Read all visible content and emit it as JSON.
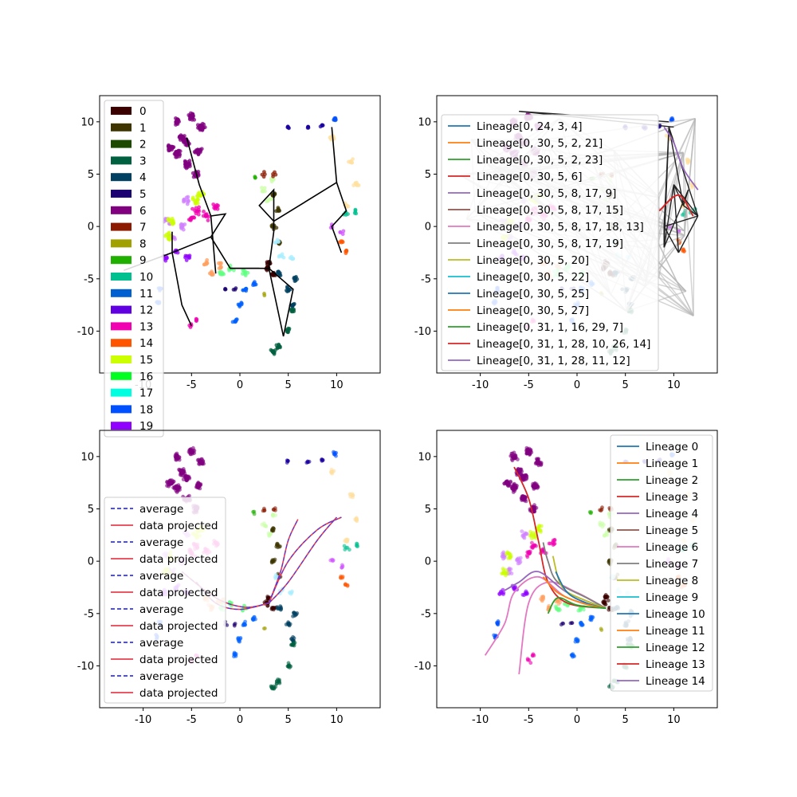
{
  "chart_data": [
    {
      "type": "scatter",
      "panel": "top-left",
      "xlim": [
        -14.5,
        14.5
      ],
      "ylim": [
        -14,
        12.5
      ],
      "xticks": [
        "-10",
        "-5",
        "0",
        "5",
        "10"
      ],
      "xtick_values": [
        -10,
        -5,
        0,
        5,
        10
      ],
      "yticks": [
        "-10",
        "-5",
        "0",
        "5",
        "10"
      ],
      "ytick_values": [
        -10,
        -5,
        0,
        5,
        10
      ],
      "legend_position": "upper-left",
      "legend": [
        {
          "label": "0",
          "color": "#3b0000"
        },
        {
          "label": "1",
          "color": "#3e3500"
        },
        {
          "label": "2",
          "color": "#1d4a00"
        },
        {
          "label": "3",
          "color": "#006040"
        },
        {
          "label": "4",
          "color": "#004060"
        },
        {
          "label": "5",
          "color": "#1a0070"
        },
        {
          "label": "6",
          "color": "#800080"
        },
        {
          "label": "7",
          "color": "#8b1a00"
        },
        {
          "label": "8",
          "color": "#a0a000"
        },
        {
          "label": "9",
          "color": "#20b000"
        },
        {
          "label": "10",
          "color": "#00c090"
        },
        {
          "label": "11",
          "color": "#0060d0"
        },
        {
          "label": "12",
          "color": "#6000e0"
        },
        {
          "label": "13",
          "color": "#f000b0"
        },
        {
          "label": "14",
          "color": "#ff5500"
        },
        {
          "label": "15",
          "color": "#ccff00"
        },
        {
          "label": "16",
          "color": "#00ff20"
        },
        {
          "label": "17",
          "color": "#00ffe0"
        },
        {
          "label": "18",
          "color": "#0050ff"
        },
        {
          "label": "19",
          "color": "#9000ff"
        }
      ],
      "tree_edges": [
        [
          [
            -5.5,
            8.5
          ],
          [
            -4.2,
            4.0
          ],
          [
            -3.0,
            1.0
          ],
          [
            -2.5,
            -4.5
          ]
        ],
        [
          [
            -3.0,
            1.0
          ],
          [
            -1.5,
            1.2
          ],
          [
            -3.0,
            -1.0
          ]
        ],
        [
          [
            -3.0,
            -1.0
          ],
          [
            -7.0,
            -2.5
          ],
          [
            -12.0,
            -4.2
          ]
        ],
        [
          [
            -7.0,
            -2.5
          ],
          [
            -7.0,
            -0.5
          ]
        ],
        [
          [
            -7.0,
            -2.5
          ],
          [
            -6.0,
            -7.5
          ],
          [
            -5.0,
            -9.5
          ]
        ],
        [
          [
            -3.0,
            -1.0
          ],
          [
            -1.0,
            -4.0
          ],
          [
            3.0,
            -4.0
          ],
          [
            4.5,
            -10.5
          ],
          [
            5.5,
            -6.0
          ],
          [
            3.0,
            -4.0
          ]
        ],
        [
          [
            -1.0,
            -4.0
          ],
          [
            2.0,
            -4.0
          ]
        ],
        [
          [
            3.0,
            -4.0
          ],
          [
            3.5,
            -0.5
          ],
          [
            3.5,
            0.5
          ],
          [
            2.0,
            2.0
          ],
          [
            3.5,
            3.5
          ],
          [
            3.5,
            0.5
          ]
        ],
        [
          [
            3.5,
            0.5
          ],
          [
            10.0,
            4.2
          ],
          [
            11.0,
            1.5
          ],
          [
            9.5,
            0.0
          ],
          [
            10.5,
            -2.5
          ]
        ],
        [
          [
            10.0,
            4.2
          ],
          [
            9.5,
            9.5
          ]
        ]
      ]
    },
    {
      "type": "line",
      "panel": "top-right",
      "xlim": [
        -14.5,
        14.5
      ],
      "ylim": [
        -14,
        12.5
      ],
      "xticks": [
        "-10",
        "-5",
        "0",
        "5",
        "10"
      ],
      "xtick_values": [
        -10,
        -5,
        0,
        5,
        10
      ],
      "yticks": [
        "-10",
        "-5",
        "0",
        "5",
        "10"
      ],
      "ytick_values": [
        -10,
        -5,
        0,
        5,
        10
      ],
      "legend_position": "upper-left",
      "legend": [
        {
          "label": "Lineage[0, 24, 3, 4]",
          "color": "#1f77b4"
        },
        {
          "label": "Lineage[0, 30, 5, 2, 21]",
          "color": "#ff7f0e"
        },
        {
          "label": "Lineage[0, 30, 5, 2, 23]",
          "color": "#2ca02c"
        },
        {
          "label": "Lineage[0, 30, 5, 6]",
          "color": "#d62728"
        },
        {
          "label": "Lineage[0, 30, 5, 8, 17, 9]",
          "color": "#9467bd"
        },
        {
          "label": "Lineage[0, 30, 5, 8, 17, 15]",
          "color": "#8c564b"
        },
        {
          "label": "Lineage[0, 30, 5, 8, 17, 18, 13]",
          "color": "#e377c2"
        },
        {
          "label": "Lineage[0, 30, 5, 8, 17, 19]",
          "color": "#7f7f7f"
        },
        {
          "label": "Lineage[0, 30, 5, 20]",
          "color": "#bcbd22"
        },
        {
          "label": "Lineage[0, 30, 5, 22]",
          "color": "#17becf"
        },
        {
          "label": "Lineage[0, 30, 5, 25]",
          "color": "#1f77b4"
        },
        {
          "label": "Lineage[0, 30, 5, 27]",
          "color": "#ff7f0e"
        },
        {
          "label": "Lineage[0, 31, 1, 16, 29, 7]",
          "color": "#2ca02c"
        },
        {
          "label": "Lineage[0, 31, 1, 28, 10, 26, 14]",
          "color": "#d62728"
        },
        {
          "label": "Lineage[0, 31, 1, 28, 11, 12]",
          "color": "#9467bd"
        }
      ]
    },
    {
      "type": "line",
      "panel": "bottom-left",
      "xlim": [
        -14.5,
        14.5
      ],
      "ylim": [
        -14,
        12.5
      ],
      "xticks": [
        "-10",
        "-5",
        "0",
        "5",
        "10"
      ],
      "xtick_values": [
        -10,
        -5,
        0,
        5,
        10
      ],
      "yticks": [
        "-10",
        "-5",
        "0",
        "5",
        "10"
      ],
      "ytick_values": [
        -10,
        -5,
        0,
        5,
        10
      ],
      "legend_position": "lower-left",
      "legend": [
        {
          "label": "average",
          "color": "#3333ff",
          "style": "dashed"
        },
        {
          "label": "data projected",
          "color": "#e8414f",
          "style": "solid"
        },
        {
          "label": "average",
          "color": "#3333ff",
          "style": "dashed"
        },
        {
          "label": "data projected",
          "color": "#e8414f",
          "style": "solid"
        },
        {
          "label": "average",
          "color": "#3333ff",
          "style": "dashed"
        },
        {
          "label": "data projected",
          "color": "#e8414f",
          "style": "solid"
        },
        {
          "label": "average",
          "color": "#3333ff",
          "style": "dashed"
        },
        {
          "label": "data projected",
          "color": "#e8414f",
          "style": "solid"
        },
        {
          "label": "average",
          "color": "#3333ff",
          "style": "dashed"
        },
        {
          "label": "data projected",
          "color": "#e8414f",
          "style": "solid"
        },
        {
          "label": "average",
          "color": "#3333ff",
          "style": "dashed"
        },
        {
          "label": "data projected",
          "color": "#e8414f",
          "style": "solid"
        }
      ],
      "curves": [
        [
          [
            3.0,
            -4.0
          ],
          [
            5.0,
            0.0
          ],
          [
            8.0,
            3.0
          ],
          [
            10.5,
            4.2
          ]
        ],
        [
          [
            3.0,
            -4.0
          ],
          [
            4.2,
            -1.0
          ],
          [
            5.0,
            2.0
          ],
          [
            6.0,
            4.0
          ]
        ],
        [
          [
            3.0,
            -4.0
          ],
          [
            5.0,
            -2.0
          ],
          [
            8.0,
            2.0
          ],
          [
            10.0,
            4.2
          ]
        ],
        [
          [
            3.0,
            -4.0
          ],
          [
            0.0,
            -4.6
          ],
          [
            -2.5,
            -4.0
          ],
          [
            -4.5,
            -2.0
          ]
        ],
        [
          [
            3.0,
            -4.0
          ],
          [
            0.5,
            -4.4
          ],
          [
            -2.5,
            -3.5
          ],
          [
            -6.0,
            -1.0
          ]
        ]
      ]
    },
    {
      "type": "line",
      "panel": "bottom-right",
      "xlim": [
        -14.5,
        14.5
      ],
      "ylim": [
        -14,
        12.5
      ],
      "xticks": [
        "-10",
        "-5",
        "0",
        "5",
        "10"
      ],
      "xtick_values": [
        -10,
        -5,
        0,
        5,
        10
      ],
      "yticks": [
        "-10",
        "-5",
        "0",
        "5",
        "10"
      ],
      "ytick_values": [
        -10,
        -5,
        0,
        5,
        10
      ],
      "legend_position": "upper-right",
      "legend": [
        {
          "label": "Lineage 0",
          "color": "#1f77b4"
        },
        {
          "label": "Lineage 1",
          "color": "#ff7f0e"
        },
        {
          "label": "Lineage 2",
          "color": "#2ca02c"
        },
        {
          "label": "Lineage 3",
          "color": "#d62728"
        },
        {
          "label": "Lineage 4",
          "color": "#9467bd"
        },
        {
          "label": "Lineage 5",
          "color": "#8c564b"
        },
        {
          "label": "Lineage 6",
          "color": "#e377c2"
        },
        {
          "label": "Lineage 7",
          "color": "#7f7f7f"
        },
        {
          "label": "Lineage 8",
          "color": "#bcbd22"
        },
        {
          "label": "Lineage 9",
          "color": "#17becf"
        },
        {
          "label": "Lineage 10",
          "color": "#1f77b4"
        },
        {
          "label": "Lineage 11",
          "color": "#ff7f0e"
        },
        {
          "label": "Lineage 12",
          "color": "#2ca02c"
        },
        {
          "label": "Lineage 13",
          "color": "#d62728"
        },
        {
          "label": "Lineage 14",
          "color": "#9467bd"
        }
      ],
      "curves": [
        {
          "color": "#d62728",
          "points": [
            [
              3.0,
              -4.5
            ],
            [
              -1.0,
              -4.0
            ],
            [
              -3.0,
              -2.0
            ],
            [
              -4.0,
              2.0
            ],
            [
              -5.0,
              6.0
            ],
            [
              -6.5,
              9.0
            ]
          ]
        },
        {
          "color": "#e377c2",
          "points": [
            [
              3.0,
              -4.5
            ],
            [
              -1.0,
              -3.5
            ],
            [
              -4.0,
              -1.5
            ],
            [
              -6.5,
              -3.0
            ],
            [
              -7.5,
              -6.0
            ],
            [
              -9.5,
              -9.0
            ]
          ]
        },
        {
          "color": "#e377c2",
          "points": [
            [
              3.0,
              -4.5
            ],
            [
              0.0,
              -3.0
            ],
            [
              -3.0,
              -2.0
            ],
            [
              -5.0,
              -4.0
            ],
            [
              -6.0,
              -10.8
            ]
          ]
        },
        {
          "color": "#9467bd",
          "points": [
            [
              3.0,
              -4.5
            ],
            [
              -1.0,
              -3.0
            ],
            [
              -4.0,
              -1.0
            ],
            [
              -6.0,
              -2.0
            ],
            [
              -7.5,
              -2.8
            ]
          ]
        },
        {
          "color": "#7f7f7f",
          "points": [
            [
              3.0,
              -4.5
            ],
            [
              1.0,
              -3.5
            ],
            [
              -2.0,
              -2.0
            ],
            [
              -3.0,
              0.0
            ],
            [
              -3.5,
              1.8
            ]
          ]
        },
        {
          "color": "#bcbd22",
          "points": [
            [
              3.0,
              -4.5
            ],
            [
              1.0,
              -3.8
            ],
            [
              -1.5,
              -2.5
            ],
            [
              -2.5,
              0.5
            ]
          ]
        },
        {
          "color": "#1f77b4",
          "points": [
            [
              3.0,
              -4.5
            ],
            [
              1.0,
              -4.0
            ],
            [
              -1.0,
              -3.0
            ],
            [
              -2.2,
              -1.0
            ]
          ]
        },
        {
          "color": "#ff7f0e",
          "points": [
            [
              3.0,
              -4.5
            ],
            [
              0.5,
              -4.0
            ],
            [
              -2.0,
              -3.0
            ],
            [
              -3.5,
              -1.5
            ]
          ]
        },
        {
          "color": "#2ca02c",
          "points": [
            [
              3.0,
              -4.5
            ],
            [
              0.0,
              -4.2
            ],
            [
              -2.0,
              -3.5
            ],
            [
              -3.0,
              -5.0
            ]
          ]
        }
      ]
    }
  ]
}
